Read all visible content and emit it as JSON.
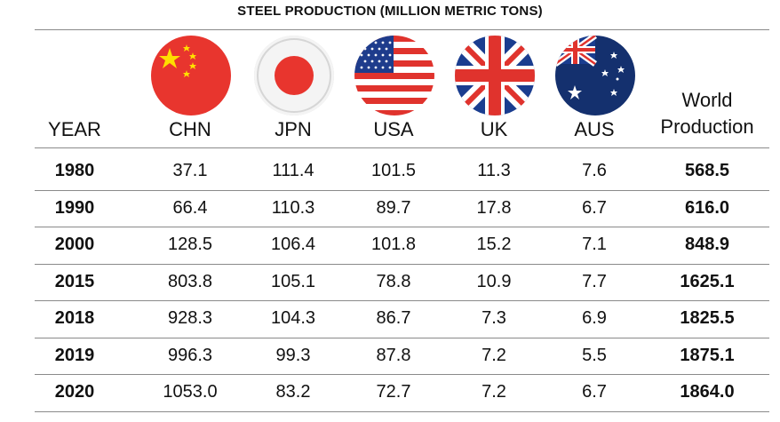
{
  "chart_data": {
    "type": "table",
    "title": "STEEL PRODUCTION (MILLION METRIC TONS)",
    "columns": [
      "YEAR",
      "CHN",
      "JPN",
      "USA",
      "UK",
      "AUS",
      "World Production"
    ],
    "header_world_line1": "World",
    "header_world_line2": "Production",
    "rows": [
      [
        "1980",
        "37.1",
        "111.4",
        "101.5",
        "11.3",
        "7.6",
        "568.5"
      ],
      [
        "1990",
        "66.4",
        "110.3",
        "89.7",
        "17.8",
        "6.7",
        "616.0"
      ],
      [
        "2000",
        "128.5",
        "106.4",
        "101.8",
        "15.2",
        "7.1",
        "848.9"
      ],
      [
        "2015",
        "803.8",
        "105.1",
        "78.8",
        "10.9",
        "7.7",
        "1625.1"
      ],
      [
        "2018",
        "928.3",
        "104.3",
        "86.7",
        "7.3",
        "6.9",
        "1825.5"
      ],
      [
        "2019",
        "996.3",
        "99.3",
        "87.8",
        "7.2",
        "5.5",
        "1875.1"
      ],
      [
        "2020",
        "1053.0",
        "83.2",
        "72.7",
        "7.2",
        "6.7",
        "1864.0"
      ]
    ],
    "flags": [
      "china-flag",
      "japan-flag",
      "usa-flag",
      "uk-flag",
      "australia-flag"
    ],
    "colors": {
      "red": "#e8352e",
      "blue": "#1a3d8f",
      "navy": "#14306e",
      "yellow": "#ffde00",
      "grid": "#8a8a8a"
    }
  }
}
